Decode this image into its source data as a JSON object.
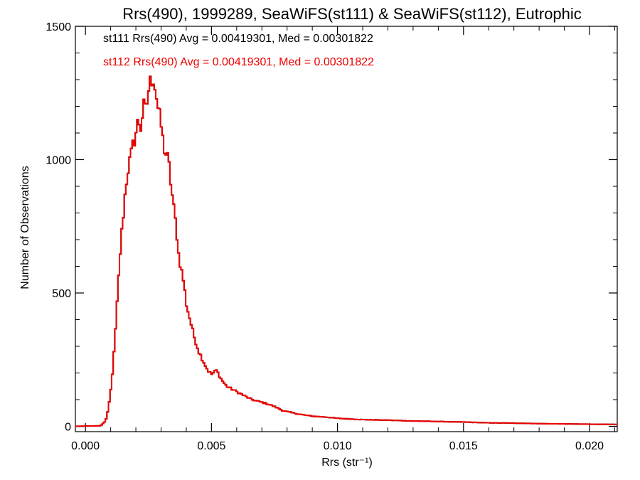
{
  "chart_data": {
    "type": "histogram",
    "title": "Rrs(490), 1999289, SeaWiFS(st111) & SeaWiFS(st112), Eutrophic",
    "xlabel": "Rrs (str⁻¹)",
    "ylabel": "Number of Observations",
    "xlim": [
      -0.0004,
      0.0211
    ],
    "ylim": [
      -20,
      1500
    ],
    "x_ticks": [
      0.0,
      0.005,
      0.01,
      0.015,
      0.02
    ],
    "x_tick_labels": [
      "0.000",
      "0.005",
      "0.010",
      "0.015",
      "0.020"
    ],
    "y_ticks": [
      0,
      500,
      1000,
      1500
    ],
    "y_tick_labels": [
      "0",
      "500",
      "1000",
      "1500"
    ],
    "grid": false,
    "annotations": [
      {
        "text": "st111 Rrs(490) Avg = 0.00419301, Med = 0.00301822",
        "color": "#000000"
      },
      {
        "text": "st112 Rrs(490) Avg = 0.00419301, Med = 0.00301822",
        "color": "#ee0000"
      }
    ],
    "series": [
      {
        "name": "st111",
        "color": "#000000"
      },
      {
        "name": "st112",
        "color": "#ee0000"
      }
    ],
    "curve_points": [
      [
        -0.0004,
        0
      ],
      [
        0.0006,
        2
      ],
      [
        0.0008,
        20
      ],
      [
        0.0009,
        60
      ],
      [
        0.001,
        130
      ],
      [
        0.0011,
        230
      ],
      [
        0.0012,
        370
      ],
      [
        0.0013,
        530
      ],
      [
        0.0014,
        680
      ],
      [
        0.0015,
        790
      ],
      [
        0.0016,
        900
      ],
      [
        0.0017,
        970
      ],
      [
        0.0018,
        1010
      ],
      [
        0.0019,
        1060
      ],
      [
        0.002,
        1100
      ],
      [
        0.0021,
        1150
      ],
      [
        0.0022,
        1120
      ],
      [
        0.0023,
        1200
      ],
      [
        0.0024,
        1180
      ],
      [
        0.0025,
        1260
      ],
      [
        0.0026,
        1300
      ],
      [
        0.0027,
        1310
      ],
      [
        0.0028,
        1250
      ],
      [
        0.0029,
        1180
      ],
      [
        0.003,
        1130
      ],
      [
        0.0031,
        1050
      ],
      [
        0.0032,
        1020
      ],
      [
        0.0033,
        990
      ],
      [
        0.0034,
        900
      ],
      [
        0.0035,
        820
      ],
      [
        0.0036,
        750
      ],
      [
        0.0037,
        640
      ],
      [
        0.0038,
        590
      ],
      [
        0.0039,
        540
      ],
      [
        0.004,
        460
      ],
      [
        0.0041,
        420
      ],
      [
        0.0042,
        380
      ],
      [
        0.0043,
        340
      ],
      [
        0.0044,
        310
      ],
      [
        0.0045,
        280
      ],
      [
        0.0046,
        260
      ],
      [
        0.0047,
        240
      ],
      [
        0.0048,
        220
      ],
      [
        0.0049,
        205
      ],
      [
        0.005,
        195
      ],
      [
        0.0052,
        210
      ],
      [
        0.0054,
        175
      ],
      [
        0.0056,
        150
      ],
      [
        0.0058,
        140
      ],
      [
        0.006,
        130
      ],
      [
        0.0062,
        120
      ],
      [
        0.0064,
        110
      ],
      [
        0.0066,
        100
      ],
      [
        0.0068,
        95
      ],
      [
        0.007,
        90
      ],
      [
        0.0072,
        85
      ],
      [
        0.0074,
        78
      ],
      [
        0.0076,
        70
      ],
      [
        0.0078,
        60
      ],
      [
        0.008,
        55
      ],
      [
        0.0085,
        45
      ],
      [
        0.009,
        38
      ],
      [
        0.0095,
        35
      ],
      [
        0.01,
        30
      ],
      [
        0.011,
        25
      ],
      [
        0.012,
        23
      ],
      [
        0.013,
        20
      ],
      [
        0.014,
        18
      ],
      [
        0.015,
        16
      ],
      [
        0.016,
        13
      ],
      [
        0.017,
        12
      ],
      [
        0.018,
        10
      ],
      [
        0.019,
        9
      ],
      [
        0.02,
        8
      ],
      [
        0.0211,
        7
      ]
    ]
  }
}
